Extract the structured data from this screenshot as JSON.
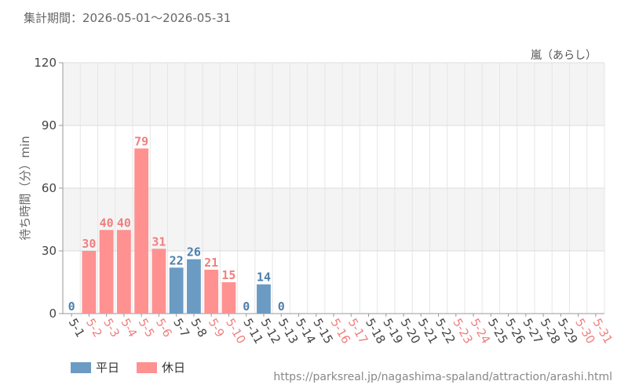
{
  "period_text": "集計期間：2026-05-01～2026-05-31",
  "attraction_name": "嵐（あらし）",
  "source_url": "https://parksreal.jp/nagashima-spaland/attraction/arashi.html",
  "colors": {
    "weekday": "#6b9bc3",
    "holiday": "#ff9191",
    "weekday_label": "#4d7fae",
    "holiday_label": "#f07f7f",
    "holiday_tick": "#f08080",
    "weekday_tick": "#444444"
  },
  "chart_data": {
    "type": "bar",
    "ylabel": "待ち時間（分）min",
    "ylim": [
      0,
      120
    ],
    "yticks": [
      0,
      30,
      60,
      90,
      120
    ],
    "grid": true,
    "legend_placement": "bottom-left",
    "categories": [
      "5-1",
      "5-2",
      "5-3",
      "5-4",
      "5-5",
      "5-6",
      "5-7",
      "5-8",
      "5-9",
      "5-10",
      "5-11",
      "5-12",
      "5-13",
      "5-14",
      "5-15",
      "5-16",
      "5-17",
      "5-18",
      "5-19",
      "5-20",
      "5-21",
      "5-22",
      "5-23",
      "5-24",
      "5-25",
      "5-26",
      "5-27",
      "5-28",
      "5-29",
      "5-30",
      "5-31"
    ],
    "day_type": [
      "weekday",
      "holiday",
      "holiday",
      "holiday",
      "holiday",
      "holiday",
      "weekday",
      "weekday",
      "holiday",
      "holiday",
      "weekday",
      "weekday",
      "weekday",
      "weekday",
      "weekday",
      "holiday",
      "holiday",
      "weekday",
      "weekday",
      "weekday",
      "weekday",
      "weekday",
      "holiday",
      "holiday",
      "weekday",
      "weekday",
      "weekday",
      "weekday",
      "weekday",
      "holiday",
      "holiday"
    ],
    "values": [
      0,
      30,
      40,
      40,
      79,
      31,
      22,
      26,
      21,
      15,
      0,
      14,
      0,
      null,
      null,
      null,
      null,
      null,
      null,
      null,
      null,
      null,
      null,
      null,
      null,
      null,
      null,
      null,
      null,
      null,
      null
    ],
    "series": [
      {
        "name": "平日",
        "key": "weekday"
      },
      {
        "name": "休日",
        "key": "holiday"
      }
    ]
  }
}
